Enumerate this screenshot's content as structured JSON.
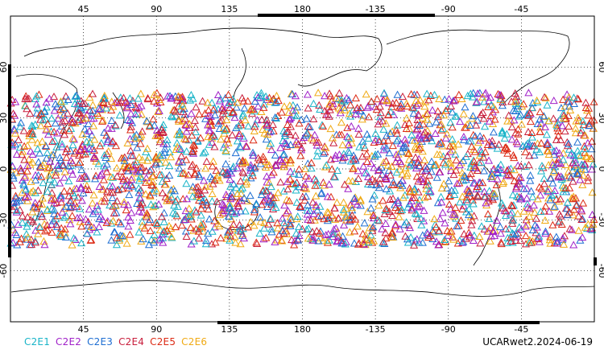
{
  "map": {
    "projection": "cylindrical equidistant",
    "lon_range": [
      0,
      360
    ],
    "lat_range": [
      -90,
      90
    ],
    "obs_lat_range": [
      -45,
      45
    ],
    "top_lon_ticks": [
      "45",
      "90",
      "135",
      "180",
      "-135",
      "-90",
      "-45"
    ],
    "bottom_lon_ticks": [
      "45",
      "90",
      "135",
      "180",
      "-135",
      "-90",
      "-45"
    ],
    "lat_ticks": [
      "60",
      "30",
      "0",
      "-30",
      "-60"
    ],
    "grid": "dotted",
    "marker": "triangle",
    "footer_label": "UCARwet2.2024-06-19"
  },
  "legend": [
    {
      "name": "C2E1",
      "color": "#19b4c8"
    },
    {
      "name": "C2E2",
      "color": "#a020c8"
    },
    {
      "name": "C2E3",
      "color": "#1e6ed2"
    },
    {
      "name": "C2E4",
      "color": "#c81e3c"
    },
    {
      "name": "C2E5",
      "color": "#dc2a14"
    },
    {
      "name": "C2E6",
      "color": "#f0aa14"
    }
  ]
}
